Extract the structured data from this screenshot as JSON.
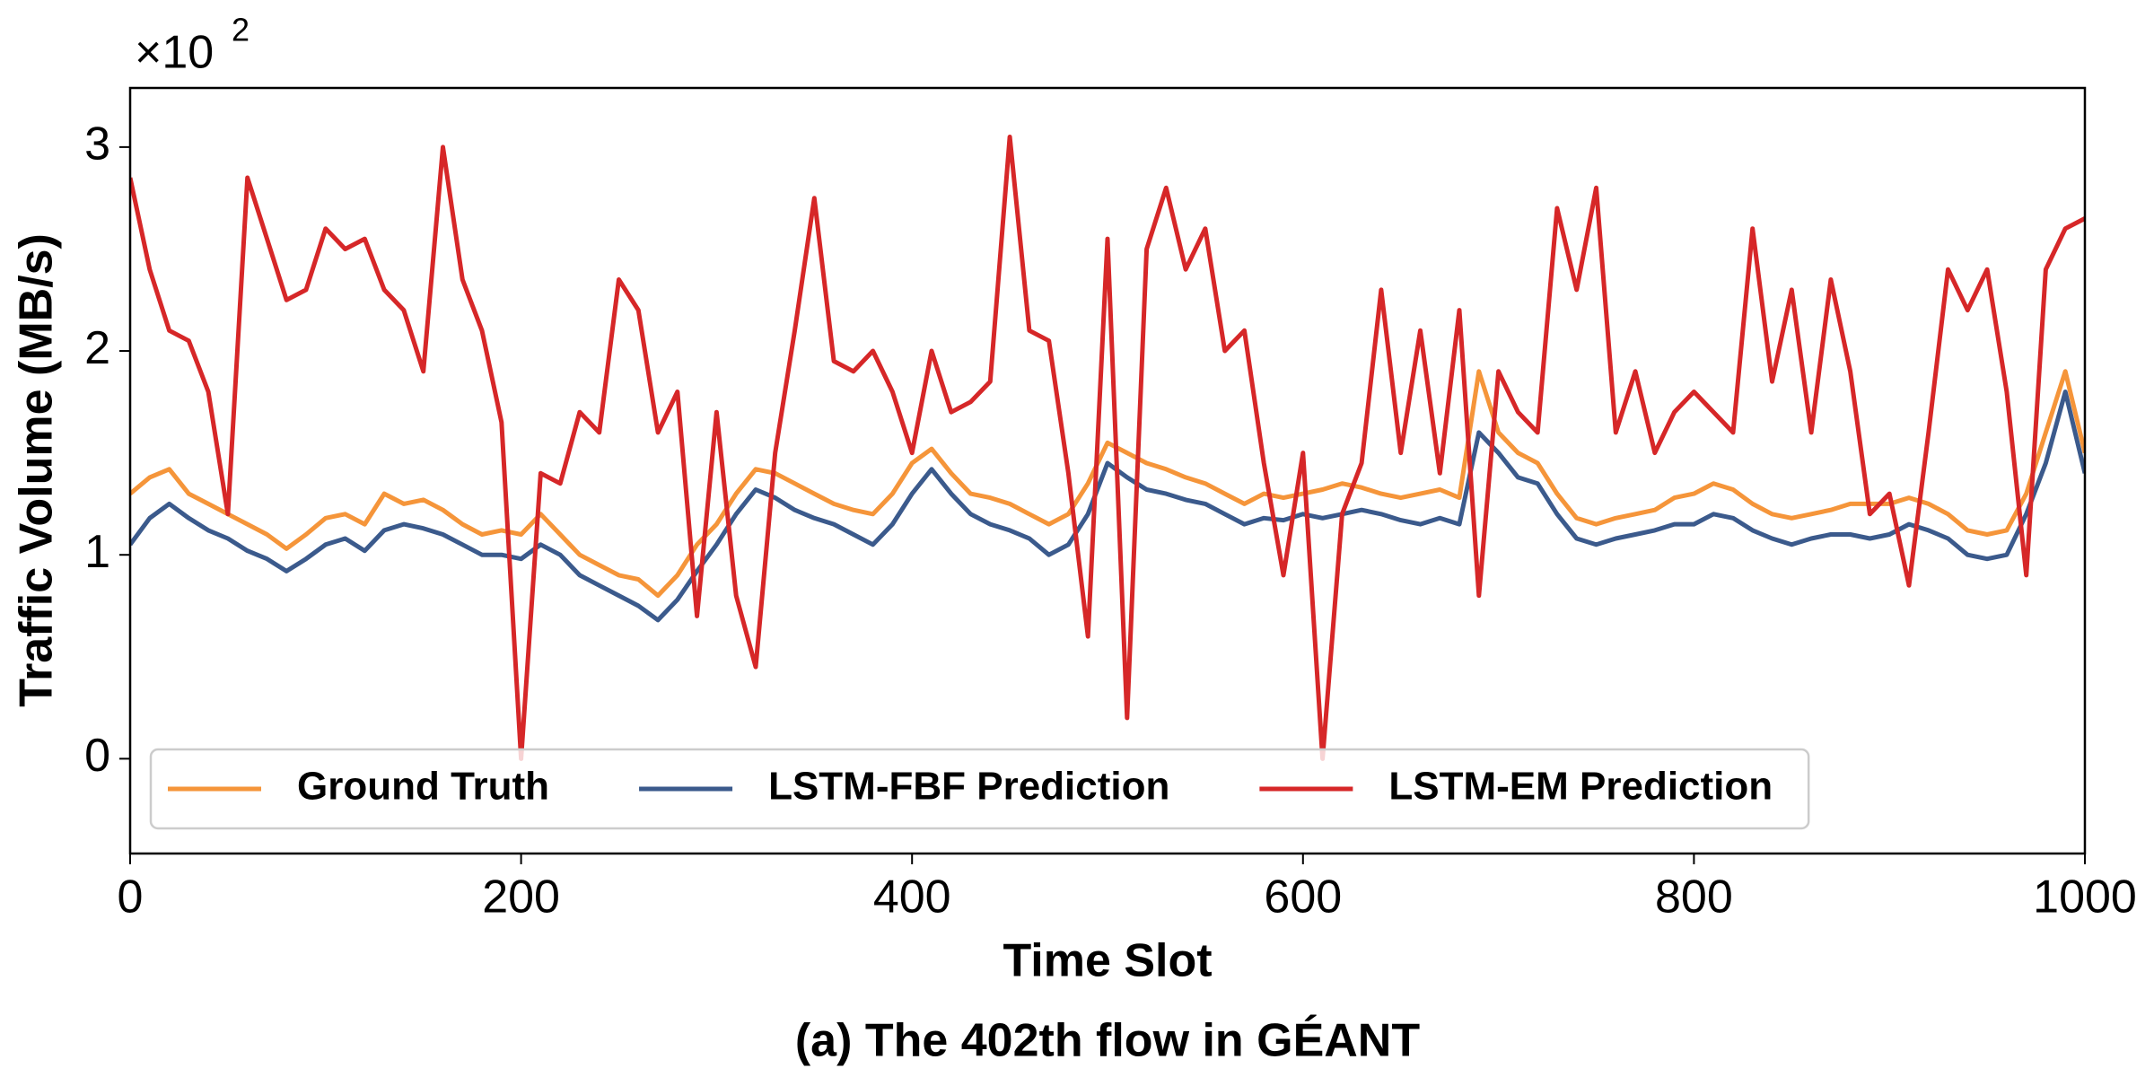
{
  "chart_data": {
    "type": "line",
    "caption": "(a) The 402th flow in GÉANT",
    "xlabel": "Time Slot",
    "ylabel": "Traffic Volume (MB/s)",
    "y_offset_text": "×10",
    "y_offset_exponent": "2",
    "x": [
      0,
      10,
      20,
      30,
      40,
      50,
      60,
      70,
      80,
      90,
      100,
      110,
      120,
      130,
      140,
      150,
      160,
      170,
      180,
      190,
      200,
      210,
      220,
      230,
      240,
      250,
      260,
      270,
      280,
      290,
      300,
      310,
      320,
      330,
      340,
      350,
      360,
      370,
      380,
      390,
      400,
      410,
      420,
      430,
      440,
      450,
      460,
      470,
      480,
      490,
      500,
      510,
      520,
      530,
      540,
      550,
      560,
      570,
      580,
      590,
      600,
      610,
      620,
      630,
      640,
      650,
      660,
      670,
      680,
      690,
      700,
      710,
      720,
      730,
      740,
      750,
      760,
      770,
      780,
      790,
      800,
      810,
      820,
      830,
      840,
      850,
      860,
      870,
      880,
      890,
      900,
      910,
      920,
      930,
      940,
      950,
      960,
      970,
      980,
      990,
      1000
    ],
    "series": [
      {
        "name": "Ground Truth",
        "color": "#f5953a",
        "values": [
          1.3,
          1.38,
          1.42,
          1.3,
          1.25,
          1.2,
          1.15,
          1.1,
          1.03,
          1.1,
          1.18,
          1.2,
          1.15,
          1.3,
          1.25,
          1.27,
          1.22,
          1.15,
          1.1,
          1.12,
          1.1,
          1.2,
          1.1,
          1.0,
          0.95,
          0.9,
          0.88,
          0.8,
          0.9,
          1.05,
          1.15,
          1.3,
          1.42,
          1.4,
          1.35,
          1.3,
          1.25,
          1.22,
          1.2,
          1.3,
          1.45,
          1.52,
          1.4,
          1.3,
          1.28,
          1.25,
          1.2,
          1.15,
          1.2,
          1.35,
          1.55,
          1.5,
          1.45,
          1.42,
          1.38,
          1.35,
          1.3,
          1.25,
          1.3,
          1.28,
          1.3,
          1.32,
          1.35,
          1.33,
          1.3,
          1.28,
          1.3,
          1.32,
          1.28,
          1.9,
          1.6,
          1.5,
          1.45,
          1.3,
          1.18,
          1.15,
          1.18,
          1.2,
          1.22,
          1.28,
          1.3,
          1.35,
          1.32,
          1.25,
          1.2,
          1.18,
          1.2,
          1.22,
          1.25,
          1.25,
          1.25,
          1.28,
          1.25,
          1.2,
          1.12,
          1.1,
          1.12,
          1.3,
          1.6,
          1.9,
          1.5
        ]
      },
      {
        "name": "LSTM-FBF Prediction",
        "color": "#3b5a8c",
        "values": [
          1.05,
          1.18,
          1.25,
          1.18,
          1.12,
          1.08,
          1.02,
          0.98,
          0.92,
          0.98,
          1.05,
          1.08,
          1.02,
          1.12,
          1.15,
          1.13,
          1.1,
          1.05,
          1.0,
          1.0,
          0.98,
          1.05,
          1.0,
          0.9,
          0.85,
          0.8,
          0.75,
          0.68,
          0.78,
          0.92,
          1.05,
          1.2,
          1.32,
          1.28,
          1.22,
          1.18,
          1.15,
          1.1,
          1.05,
          1.15,
          1.3,
          1.42,
          1.3,
          1.2,
          1.15,
          1.12,
          1.08,
          1.0,
          1.05,
          1.2,
          1.45,
          1.38,
          1.32,
          1.3,
          1.27,
          1.25,
          1.2,
          1.15,
          1.18,
          1.17,
          1.2,
          1.18,
          1.2,
          1.22,
          1.2,
          1.17,
          1.15,
          1.18,
          1.15,
          1.6,
          1.5,
          1.38,
          1.35,
          1.2,
          1.08,
          1.05,
          1.08,
          1.1,
          1.12,
          1.15,
          1.15,
          1.2,
          1.18,
          1.12,
          1.08,
          1.05,
          1.08,
          1.1,
          1.1,
          1.08,
          1.1,
          1.15,
          1.12,
          1.08,
          1.0,
          0.98,
          1.0,
          1.2,
          1.45,
          1.8,
          1.4
        ]
      },
      {
        "name": "LSTM-EM Prediction",
        "color": "#d62728",
        "values": [
          2.85,
          2.4,
          2.1,
          2.05,
          1.8,
          1.2,
          2.85,
          2.55,
          2.25,
          2.3,
          2.6,
          2.5,
          2.55,
          2.3,
          2.2,
          1.9,
          3.0,
          2.35,
          2.1,
          1.65,
          0.0,
          1.4,
          1.35,
          1.7,
          1.6,
          2.35,
          2.2,
          1.6,
          1.8,
          0.7,
          1.7,
          0.8,
          0.45,
          1.5,
          2.1,
          2.75,
          1.95,
          1.9,
          2.0,
          1.8,
          1.5,
          2.0,
          1.7,
          1.75,
          1.85,
          3.05,
          2.1,
          2.05,
          1.4,
          0.6,
          2.55,
          0.2,
          2.5,
          2.8,
          2.4,
          2.6,
          2.0,
          2.1,
          1.45,
          0.9,
          1.5,
          0.0,
          1.2,
          1.45,
          2.3,
          1.5,
          2.1,
          1.4,
          2.2,
          0.8,
          1.9,
          1.7,
          1.6,
          2.7,
          2.3,
          2.8,
          1.6,
          1.9,
          1.5,
          1.7,
          1.8,
          1.7,
          1.6,
          2.6,
          1.85,
          2.3,
          1.6,
          2.35,
          1.9,
          1.2,
          1.3,
          0.85,
          1.6,
          2.4,
          2.2,
          2.4,
          1.8,
          0.9,
          2.4,
          2.6,
          2.65
        ]
      }
    ],
    "xlim": [
      0,
      1000
    ],
    "xticks": [
      0,
      200,
      400,
      600,
      800,
      1000
    ],
    "ylim": [
      -0.465,
      3.29
    ],
    "yticks": [
      0,
      1,
      2,
      3
    ],
    "grid": false,
    "legend_loc": "lower left"
  }
}
